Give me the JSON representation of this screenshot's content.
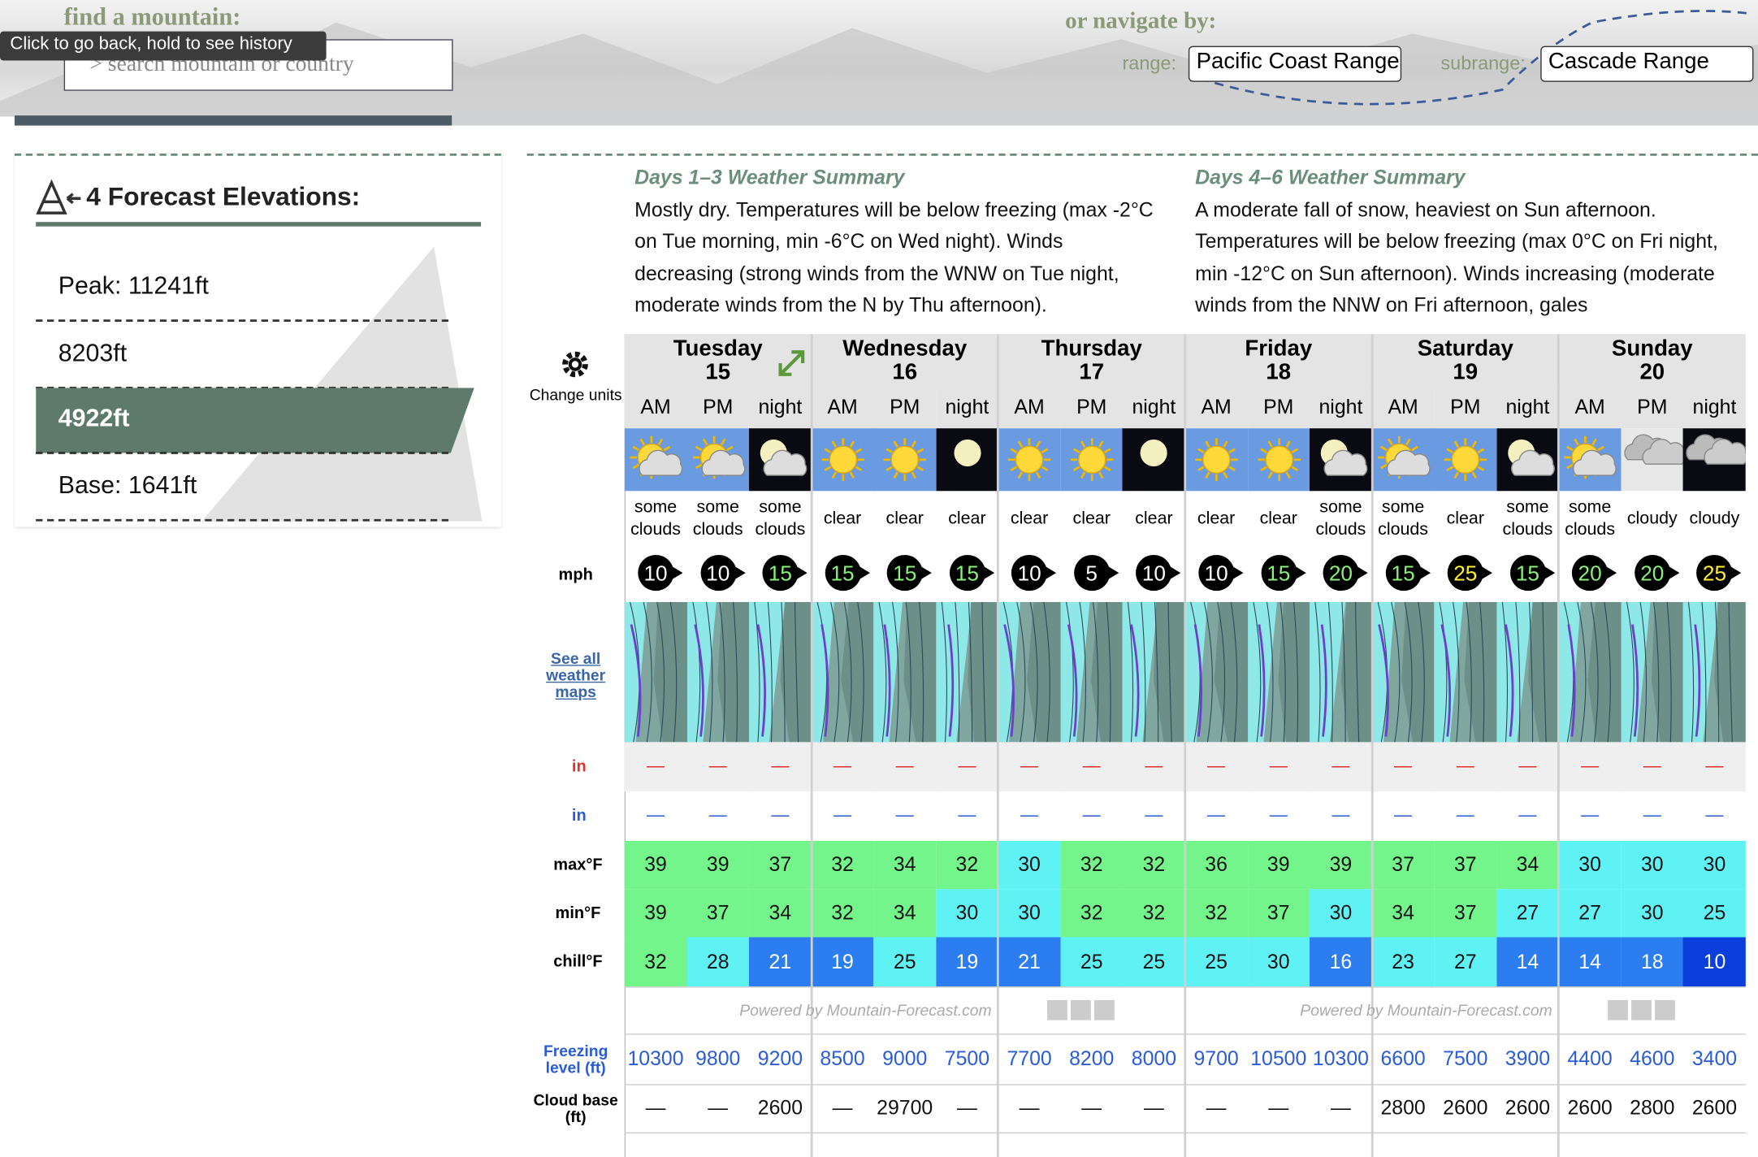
{
  "header": {
    "find_label": "find a mountain:",
    "tooltip": "Click to go back, hold to see history",
    "search_placeholder": "> search mountain or country",
    "navigate_label": "or navigate by:",
    "range_label": "range:",
    "range_value": "Pacific Coast Range",
    "subrange_label": "subrange:",
    "subrange_value": "Cascade Range"
  },
  "sidebar": {
    "title": "4 Forecast Elevations:",
    "elevations": [
      "Peak: 11241ft",
      "8203ft",
      "4922ft",
      "Base: 1641ft"
    ],
    "selected": 2
  },
  "summaries": [
    {
      "title": "Days 1–3 Weather Summary",
      "text": "Mostly dry. Temperatures will be below freezing (max -2°C on Tue morning, min -6°C on Wed night). Winds decreasing (strong winds from the WNW on Tue night, moderate winds from the N by Thu afternoon)."
    },
    {
      "title": "Days 4–6 Weather Summary",
      "text": "A moderate fall of snow, heaviest on Sun afternoon. Temperatures will be below freezing (max 0°C on Fri night, min -12°C on Sun afternoon). Winds increasing (moderate winds from the NNW on Fri afternoon, gales"
    }
  ],
  "table": {
    "change_units": "Change units",
    "wind_unit": "mph",
    "maps_link": "See all weather maps",
    "snow_label": "in",
    "rain_label": "in",
    "max_label": "max°F",
    "min_label": "min°F",
    "chill_label": "chill°F",
    "freezing_label": "Freezing level (ft)",
    "cloud_label": "Cloud base (ft)",
    "powered": [
      "Powered by Mountain-Forecast.com",
      "Powered by Mountain-Forecast.com"
    ],
    "days": [
      {
        "name": "Tuesday",
        "date": "15"
      },
      {
        "name": "Wednesday",
        "date": "16"
      },
      {
        "name": "Thursday",
        "date": "17"
      },
      {
        "name": "Friday",
        "date": "18"
      },
      {
        "name": "Saturday",
        "date": "19"
      },
      {
        "name": "Sunday",
        "date": "20"
      }
    ],
    "periods": [
      "AM",
      "PM",
      "night",
      "AM",
      "PM",
      "night",
      "AM",
      "PM",
      "night",
      "AM",
      "PM",
      "night",
      "AM",
      "PM",
      "night",
      "AM",
      "PM",
      "night"
    ],
    "weather": [
      "some clouds",
      "some clouds",
      "some clouds",
      "clear",
      "clear",
      "clear",
      "clear",
      "clear",
      "clear",
      "clear",
      "clear",
      "some clouds",
      "some clouds",
      "clear",
      "some clouds",
      "some clouds",
      "cloudy",
      "cloudy"
    ],
    "wind": [
      10,
      10,
      15,
      15,
      15,
      15,
      10,
      5,
      10,
      10,
      15,
      20,
      15,
      25,
      15,
      20,
      20,
      25
    ],
    "snow": [
      "—",
      "—",
      "—",
      "—",
      "—",
      "—",
      "—",
      "—",
      "—",
      "—",
      "—",
      "—",
      "—",
      "—",
      "—",
      "—",
      "—",
      "—"
    ],
    "rain": [
      "—",
      "—",
      "—",
      "—",
      "—",
      "—",
      "—",
      "—",
      "—",
      "—",
      "—",
      "—",
      "—",
      "—",
      "—",
      "—",
      "—",
      "—"
    ],
    "max": [
      39,
      39,
      37,
      32,
      34,
      32,
      30,
      32,
      32,
      36,
      39,
      39,
      37,
      37,
      34,
      30,
      30,
      30
    ],
    "min": [
      39,
      37,
      34,
      32,
      34,
      30,
      30,
      32,
      32,
      32,
      37,
      30,
      34,
      37,
      27,
      27,
      30,
      25
    ],
    "chill": [
      32,
      28,
      21,
      19,
      25,
      19,
      21,
      25,
      25,
      25,
      30,
      16,
      23,
      27,
      14,
      14,
      18,
      10
    ],
    "freezing": [
      10300,
      9800,
      9200,
      8500,
      9000,
      7500,
      7700,
      8200,
      8000,
      9700,
      10500,
      10300,
      6600,
      7500,
      3900,
      4400,
      4600,
      3400
    ],
    "cloud_base": [
      "—",
      "—",
      "2600",
      "—",
      "29700",
      "—",
      "—",
      "—",
      "—",
      "—",
      "—",
      "—",
      "2800",
      "2600",
      "2600",
      "2600",
      "2800",
      "2600"
    ]
  }
}
